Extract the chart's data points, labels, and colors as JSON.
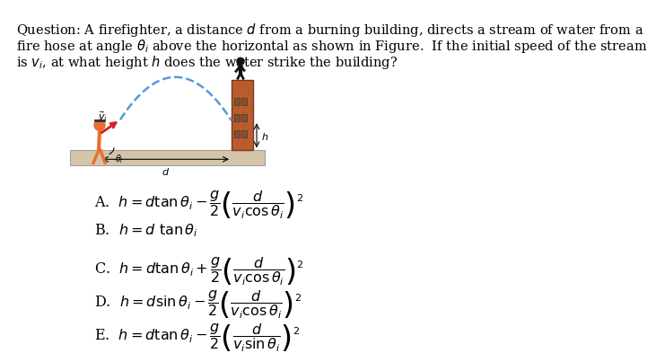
{
  "question_text_lines": [
    "Question: A firefighter, a distance $d$ from a burning building, directs a stream of water from a",
    "fire hose at angle $\\theta_i$ above the horizontal as shown in Figure.  If the initial speed of the stream",
    "is $v_i$, at what height $h$ does the water strike the building?"
  ],
  "choices": [
    "A.  $h = d \\tan \\theta_i - \\dfrac{g}{2}\\left(\\dfrac{d}{v_i \\cos \\theta_i}\\right)^{2}$",
    "B.  $h = d\\ \\tan \\theta_i$",
    "C.  $h = d \\tan \\theta_i + \\dfrac{g}{2}\\left(\\dfrac{d}{v_i \\cos \\theta_i}\\right)^{2}$",
    "D.  $h = d \\sin \\theta_i - \\dfrac{g}{2}\\left(\\dfrac{d}{v_i \\cos \\theta_i}\\right)^{2}$",
    "E.  $h = d \\tan \\theta_i - \\dfrac{g}{2}\\left(\\dfrac{d}{v_i \\sin \\theta_i}\\right)^{2}$"
  ],
  "bg_color": "#ffffff",
  "text_color": "#000000",
  "question_fontsize": 10.5,
  "choice_fontsize": 11.5,
  "fig_width": 6.71,
  "fig_height": 3.74,
  "diagram": {
    "ground_color": "#D4C5A9",
    "ground_edge_color": "#A0A0A0",
    "building_color": "#B85C30",
    "building_edge_color": "#7A3A1A",
    "water_color": "#5599DD",
    "firefighter_color": "#E87030",
    "arrow_color": "#CC2222"
  }
}
